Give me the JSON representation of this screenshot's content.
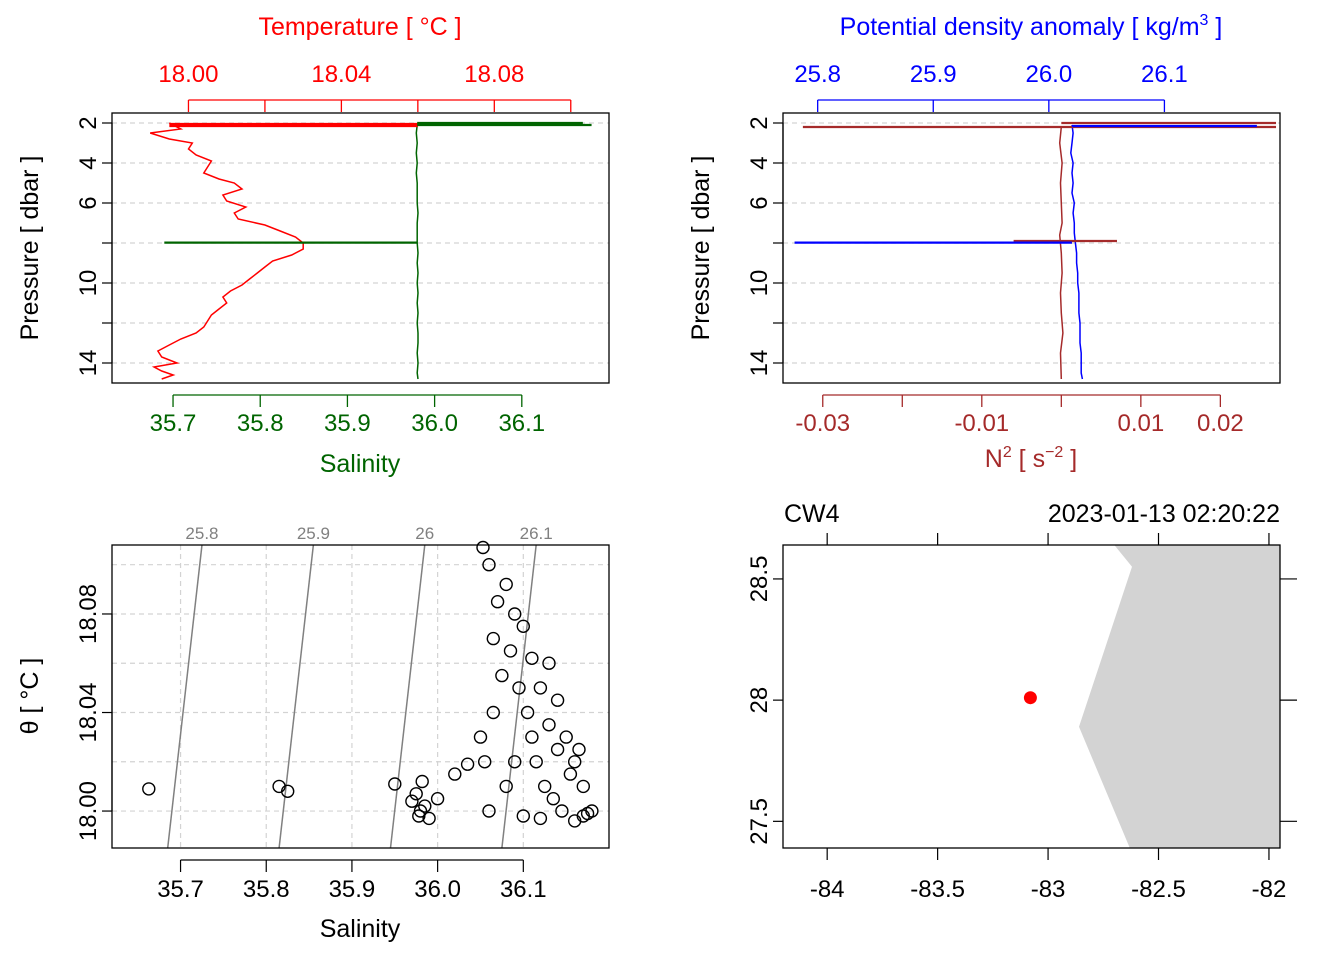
{
  "colors": {
    "temperature": "#ff0000",
    "salinity": "#006400",
    "sigma": "#0000ff",
    "n2": "#a52a2a",
    "grid": "#d3d3d3",
    "coast": "#d3d3d3",
    "isopycnal": "#808080",
    "station": "#ff0000",
    "axis": "#000000"
  },
  "chart_data": [
    {
      "type": "line",
      "id": "profile-ts",
      "ylabel": "Pressure [ dbar ]",
      "ylim": [
        15,
        1.5
      ],
      "yticks": [
        "2",
        "4",
        "6",
        "8",
        "10",
        "12",
        "14"
      ],
      "ytick_values": [
        2,
        4,
        6,
        8,
        10,
        12,
        14
      ],
      "ytick_labeled": [
        true,
        true,
        true,
        false,
        true,
        false,
        true
      ],
      "top_axis": {
        "label": "Temperature [ °C ]",
        "lim": [
          17.98,
          18.11
        ],
        "ticks": [
          "18.00",
          "18.02",
          "18.04",
          "18.06",
          "18.08",
          "18.10"
        ],
        "tick_values": [
          18.0,
          18.02,
          18.04,
          18.06,
          18.08,
          18.1
        ],
        "labeled": [
          true,
          false,
          true,
          false,
          true,
          false
        ]
      },
      "bottom_axis": {
        "label": "Salinity",
        "lim": [
          35.63,
          36.2
        ],
        "ticks": [
          "35.7",
          "35.8",
          "35.9",
          "36.0",
          "36.1"
        ],
        "tick_values": [
          35.7,
          35.8,
          35.9,
          36.0,
          36.1
        ]
      },
      "series": [
        {
          "name": "Temperature",
          "axis": "top",
          "points": [
            [
              17.995,
              2.0
            ],
            [
              17.998,
              2.3
            ],
            [
              17.99,
              2.5
            ],
            [
              17.995,
              2.8
            ],
            [
              18.001,
              3.0
            ],
            [
              18.0,
              3.3
            ],
            [
              18.002,
              3.6
            ],
            [
              18.006,
              3.9
            ],
            [
              18.005,
              4.2
            ],
            [
              18.004,
              4.5
            ],
            [
              18.008,
              4.8
            ],
            [
              18.012,
              5.0
            ],
            [
              18.014,
              5.3
            ],
            [
              18.009,
              5.6
            ],
            [
              18.01,
              5.9
            ],
            [
              18.015,
              6.2
            ],
            [
              18.012,
              6.5
            ],
            [
              18.013,
              6.8
            ],
            [
              18.02,
              7.1
            ],
            [
              18.024,
              7.4
            ],
            [
              18.028,
              7.7
            ],
            [
              18.03,
              8.0
            ],
            [
              18.03,
              8.3
            ],
            [
              18.027,
              8.6
            ],
            [
              18.022,
              8.9
            ],
            [
              18.02,
              9.2
            ],
            [
              18.018,
              9.5
            ],
            [
              18.016,
              9.8
            ],
            [
              18.014,
              10.1
            ],
            [
              18.011,
              10.4
            ],
            [
              18.009,
              10.7
            ],
            [
              18.01,
              11.0
            ],
            [
              18.008,
              11.3
            ],
            [
              18.006,
              11.6
            ],
            [
              18.005,
              11.9
            ],
            [
              18.004,
              12.2
            ],
            [
              18.002,
              12.5
            ],
            [
              17.998,
              12.8
            ],
            [
              17.995,
              13.1
            ],
            [
              17.992,
              13.4
            ],
            [
              17.993,
              13.7
            ],
            [
              17.997,
              14.0
            ],
            [
              17.991,
              14.2
            ],
            [
              17.993,
              14.4
            ],
            [
              17.996,
              14.6
            ],
            [
              17.993,
              14.8
            ]
          ]
        },
        {
          "name": "Salinity",
          "axis": "bottom",
          "points": [
            [
              35.98,
              2.1
            ],
            [
              35.979,
              2.5
            ],
            [
              35.98,
              3.0
            ],
            [
              35.979,
              3.5
            ],
            [
              35.98,
              4.0
            ],
            [
              35.979,
              4.5
            ],
            [
              35.98,
              5.0
            ],
            [
              35.98,
              5.5
            ],
            [
              35.98,
              6.0
            ],
            [
              35.981,
              6.5
            ],
            [
              35.98,
              7.0
            ],
            [
              35.98,
              7.5
            ],
            [
              35.98,
              8.0
            ],
            [
              35.981,
              8.5
            ],
            [
              35.98,
              9.0
            ],
            [
              35.981,
              9.5
            ],
            [
              35.98,
              10.0
            ],
            [
              35.981,
              10.5
            ],
            [
              35.98,
              11.0
            ],
            [
              35.981,
              11.5
            ],
            [
              35.98,
              12.0
            ],
            [
              35.981,
              12.5
            ],
            [
              35.981,
              13.0
            ],
            [
              35.98,
              13.5
            ],
            [
              35.981,
              14.0
            ],
            [
              35.98,
              14.5
            ],
            [
              35.981,
              14.8
            ]
          ]
        }
      ],
      "spikes": [
        {
          "series": "Temperature",
          "pressure": 2.05,
          "from": 17.995,
          "to": 18.06
        },
        {
          "series": "Temperature",
          "pressure": 2.15,
          "from": 17.995,
          "to": 18.06
        },
        {
          "series": "Salinity",
          "pressure": 2.0,
          "from": 35.98,
          "to": 36.17
        },
        {
          "series": "Salinity",
          "pressure": 2.1,
          "from": 35.98,
          "to": 36.18
        },
        {
          "series": "Salinity",
          "pressure": 7.98,
          "from": 35.69,
          "to": 35.98
        }
      ]
    },
    {
      "type": "line",
      "id": "profile-density",
      "ylabel": "Pressure [ dbar ]",
      "ylim": [
        15,
        1.5
      ],
      "yticks": [
        "2",
        "4",
        "6",
        "8",
        "10",
        "12",
        "14"
      ],
      "ytick_values": [
        2,
        4,
        6,
        8,
        10,
        12,
        14
      ],
      "ytick_labeled": [
        true,
        true,
        true,
        false,
        true,
        false,
        true
      ],
      "top_axis": {
        "label": "Potential density anomaly [ kg/m",
        "label_sup": "3",
        "label_end": " ]",
        "lim": [
          25.77,
          26.2
        ],
        "ticks": [
          "25.8",
          "25.9",
          "26.0",
          "26.1"
        ],
        "tick_values": [
          25.8,
          25.9,
          26.0,
          26.1
        ]
      },
      "bottom_axis": {
        "label": "N",
        "label_sup": "2",
        "label_mid": " [ s",
        "label_sup2": "−2",
        "label_end": " ]",
        "lim": [
          -0.035,
          0.0275
        ],
        "ticks": [
          "-0.03",
          "-0.02",
          "-0.01",
          "0.00",
          "0.01",
          "0.02"
        ],
        "tick_values": [
          -0.03,
          -0.02,
          -0.01,
          0.0,
          0.01,
          0.02
        ],
        "labeled": [
          true,
          false,
          true,
          false,
          true,
          true
        ]
      },
      "series": [
        {
          "name": "Potential density anomaly",
          "axis": "top",
          "points": [
            [
              26.02,
              2.1
            ],
            [
              26.021,
              2.5
            ],
            [
              26.02,
              3.0
            ],
            [
              26.019,
              3.5
            ],
            [
              26.021,
              4.0
            ],
            [
              26.02,
              4.5
            ],
            [
              26.021,
              5.0
            ],
            [
              26.02,
              5.5
            ],
            [
              26.022,
              6.0
            ],
            [
              26.021,
              6.5
            ],
            [
              26.022,
              7.0
            ],
            [
              26.022,
              7.5
            ],
            [
              26.023,
              8.0
            ],
            [
              26.024,
              8.5
            ],
            [
              26.024,
              9.0
            ],
            [
              26.025,
              9.5
            ],
            [
              26.025,
              10.0
            ],
            [
              26.026,
              10.5
            ],
            [
              26.026,
              11.0
            ],
            [
              26.026,
              11.5
            ],
            [
              26.027,
              12.0
            ],
            [
              26.027,
              12.5
            ],
            [
              26.027,
              13.0
            ],
            [
              26.028,
              13.5
            ],
            [
              26.028,
              14.0
            ],
            [
              26.028,
              14.5
            ],
            [
              26.029,
              14.8
            ]
          ]
        },
        {
          "name": "N2",
          "axis": "bottom",
          "points": [
            [
              0.0,
              2.2
            ],
            [
              -0.0002,
              3.0
            ],
            [
              0.0001,
              4.0
            ],
            [
              -0.0001,
              5.0
            ],
            [
              0.0,
              6.0
            ],
            [
              0.0001,
              7.0
            ],
            [
              -0.0002,
              7.6
            ],
            [
              0.0,
              8.5
            ],
            [
              0.0001,
              9.5
            ],
            [
              -0.0001,
              10.5
            ],
            [
              0.0,
              11.5
            ],
            [
              0.0002,
              12.5
            ],
            [
              -0.0001,
              13.5
            ],
            [
              0.0,
              14.8
            ]
          ]
        }
      ],
      "spikes": [
        {
          "series": "N2",
          "pressure": 2.0,
          "from": 0.0,
          "to": 0.027
        },
        {
          "series": "N2",
          "pressure": 2.2,
          "from": -0.0325,
          "to": 0.027
        },
        {
          "series": "N2",
          "pressure": 7.9,
          "from": -0.006,
          "to": 0.007
        },
        {
          "series": "Potential density anomaly",
          "pressure": 2.15,
          "from": 26.02,
          "to": 26.18
        },
        {
          "series": "Potential density anomaly",
          "pressure": 7.98,
          "from": 25.78,
          "to": 26.02
        }
      ]
    },
    {
      "type": "scatter",
      "id": "ts-diagram",
      "xlabel": "Salinity",
      "ylabel": "θ [ °C ]",
      "xlim": [
        35.62,
        36.2
      ],
      "ylim": [
        17.985,
        18.108
      ],
      "xticks": [
        "35.7",
        "35.8",
        "35.9",
        "36.0",
        "36.1"
      ],
      "xtick_values": [
        35.7,
        35.8,
        35.9,
        36.0,
        36.1
      ],
      "yticks": [
        "18.00",
        "18.04",
        "18.08"
      ],
      "ytick_values": [
        18.0,
        18.04,
        18.08
      ],
      "ygrid_values": [
        18.0,
        18.02,
        18.04,
        18.06,
        18.08,
        18.1
      ],
      "isopycnals": [
        {
          "label": "25.8",
          "s_bottom": 35.685,
          "s_top": 35.725
        },
        {
          "label": "25.9",
          "s_bottom": 35.815,
          "s_top": 35.855
        },
        {
          "label": "26",
          "s_bottom": 35.945,
          "s_top": 35.985
        },
        {
          "label": "26.1",
          "s_bottom": 36.075,
          "s_top": 36.115
        }
      ],
      "points": [
        [
          35.663,
          18.009
        ],
        [
          35.815,
          18.01
        ],
        [
          35.825,
          18.008
        ],
        [
          35.95,
          18.011
        ],
        [
          35.97,
          18.004
        ],
        [
          35.975,
          18.007
        ],
        [
          35.978,
          17.998
        ],
        [
          35.99,
          17.997
        ],
        [
          35.982,
          18.012
        ],
        [
          35.98,
          18.0
        ],
        [
          35.985,
          18.002
        ],
        [
          36.0,
          18.005
        ],
        [
          36.02,
          18.015
        ],
        [
          36.035,
          18.019
        ],
        [
          36.05,
          18.03
        ],
        [
          36.053,
          18.107
        ],
        [
          36.06,
          18.1
        ],
        [
          36.07,
          18.085
        ],
        [
          36.08,
          18.092
        ],
        [
          36.065,
          18.07
        ],
        [
          36.09,
          18.08
        ],
        [
          36.1,
          18.075
        ],
        [
          36.11,
          18.062
        ],
        [
          36.12,
          18.05
        ],
        [
          36.13,
          18.06
        ],
        [
          36.14,
          18.045
        ],
        [
          36.15,
          18.03
        ],
        [
          36.16,
          18.02
        ],
        [
          36.17,
          18.01
        ],
        [
          36.18,
          18.0
        ],
        [
          36.17,
          17.998
        ],
        [
          36.16,
          17.996
        ],
        [
          36.12,
          17.997
        ],
        [
          36.1,
          17.998
        ],
        [
          36.08,
          18.01
        ],
        [
          36.06,
          18.0
        ],
        [
          36.09,
          18.02
        ],
        [
          36.11,
          18.03
        ],
        [
          36.13,
          18.035
        ],
        [
          36.14,
          18.025
        ],
        [
          36.055,
          18.02
        ],
        [
          36.065,
          18.04
        ],
        [
          36.075,
          18.055
        ],
        [
          36.085,
          18.065
        ],
        [
          36.095,
          18.05
        ],
        [
          36.105,
          18.04
        ],
        [
          36.115,
          18.02
        ],
        [
          36.125,
          18.01
        ],
        [
          36.135,
          18.005
        ],
        [
          36.145,
          18.0
        ],
        [
          36.155,
          18.015
        ],
        [
          36.165,
          18.025
        ],
        [
          36.175,
          17.999
        ]
      ]
    },
    {
      "type": "map",
      "id": "station-map",
      "station_label": "CW4",
      "datetime": "2023-01-13 02:20:22",
      "xlim": [
        -84.2,
        -81.95
      ],
      "ylim": [
        27.39,
        28.64
      ],
      "xticks": [
        "-84",
        "-83.5",
        "-83",
        "-82.5",
        "-82"
      ],
      "xtick_values": [
        -84,
        -83.5,
        -83,
        -82.5,
        -82
      ],
      "yticks": [
        "27.5",
        "28",
        "28.5"
      ],
      "ytick_values": [
        27.5,
        28,
        28.5
      ],
      "coast": [
        [
          -82.7,
          28.64
        ],
        [
          -82.62,
          28.55
        ],
        [
          -82.86,
          27.89
        ],
        [
          -82.63,
          27.39
        ],
        [
          -81.95,
          27.39
        ],
        [
          -81.95,
          28.64
        ]
      ],
      "station": [
        -83.08,
        28.01
      ]
    }
  ]
}
